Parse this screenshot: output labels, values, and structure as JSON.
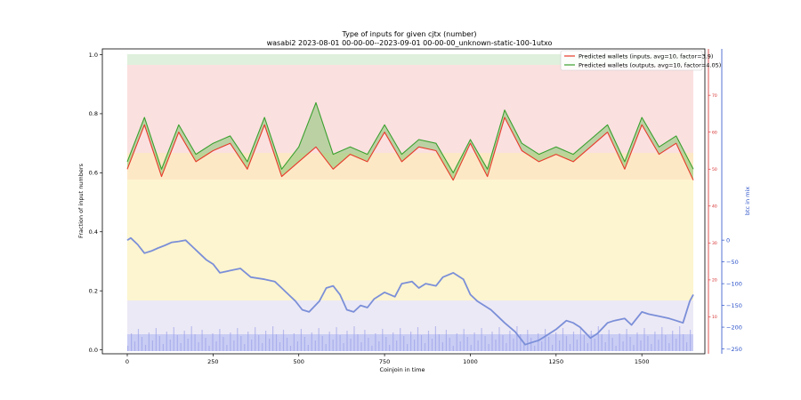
{
  "chart_data": {
    "type": "line",
    "title": "Type of inputs for given cjtx (number)",
    "subtitle": "wasabi2 2023-08-01 00-00-00--2023-09-01 00-00-00_unknown-static-100-1utxo",
    "xlabel": "Coinjoin in time",
    "ylabel": "Fraction of input numbers",
    "y2label": "btc in mix",
    "xlim": [
      -70,
      1700
    ],
    "ylim": [
      0.0,
      1.0
    ],
    "y2lim": [
      -255,
      5
    ],
    "y3lim": [
      0,
      80
    ],
    "x_ticks": [
      0,
      250,
      500,
      750,
      1000,
      1250,
      1500
    ],
    "y_ticks": [
      0.0,
      0.2,
      0.4,
      0.6,
      0.8,
      1.0
    ],
    "y2_ticks": [
      0,
      -50,
      -100,
      -150,
      -200,
      -250
    ],
    "y3_ticks": [
      10,
      20,
      30,
      40,
      50,
      60,
      70
    ],
    "n_coinjoins": 1650,
    "grid": false,
    "legend_position": "top-right",
    "series": [
      {
        "name": "Predicted wallets (inputs, avg=10, factor=3.9)",
        "color": "#e8392a",
        "axis": "y3",
        "x": [
          0,
          50,
          100,
          150,
          200,
          250,
          300,
          350,
          400,
          450,
          500,
          550,
          600,
          650,
          700,
          750,
          800,
          850,
          900,
          950,
          1000,
          1050,
          1100,
          1150,
          1200,
          1250,
          1300,
          1350,
          1400,
          1450,
          1500,
          1550,
          1600,
          1650
        ],
        "values": [
          50,
          62,
          48,
          60,
          52,
          55,
          57,
          50,
          62,
          48,
          52,
          56,
          50,
          54,
          52,
          60,
          52,
          56,
          55,
          47,
          57,
          48,
          64,
          55,
          52,
          54,
          52,
          56,
          60,
          50,
          62,
          54,
          57,
          47
        ]
      },
      {
        "name": "Predicted wallets (outputs, avg=10, factor=4.05)",
        "color": "#3aa02e",
        "axis": "y3",
        "x": [
          0,
          50,
          100,
          150,
          200,
          250,
          300,
          350,
          400,
          450,
          500,
          550,
          600,
          650,
          700,
          750,
          800,
          850,
          900,
          950,
          1000,
          1050,
          1100,
          1150,
          1200,
          1250,
          1300,
          1350,
          1400,
          1450,
          1500,
          1550,
          1600,
          1650
        ],
        "values": [
          52,
          64,
          50,
          62,
          54,
          57,
          59,
          52,
          64,
          50,
          56,
          68,
          54,
          56,
          54,
          62,
          54,
          58,
          57,
          49,
          58,
          50,
          66,
          57,
          54,
          56,
          54,
          58,
          62,
          52,
          64,
          56,
          59,
          50
        ]
      },
      {
        "name": "btc in mix",
        "color": "#7b8fd8",
        "axis": "y2",
        "x": [
          0,
          10,
          30,
          50,
          70,
          90,
          110,
          130,
          150,
          170,
          190,
          210,
          230,
          250,
          270,
          300,
          330,
          360,
          400,
          430,
          450,
          470,
          490,
          510,
          530,
          560,
          580,
          600,
          620,
          640,
          660,
          680,
          700,
          720,
          750,
          780,
          800,
          830,
          850,
          870,
          900,
          920,
          950,
          980,
          1000,
          1020,
          1040,
          1060,
          1080,
          1100,
          1130,
          1150,
          1160,
          1180,
          1200,
          1220,
          1250,
          1280,
          1300,
          1320,
          1350,
          1370,
          1400,
          1420,
          1450,
          1470,
          1500,
          1520,
          1550,
          1580,
          1600,
          1620,
          1640,
          1650
        ],
        "values": [
          0,
          5,
          -10,
          -30,
          -25,
          -18,
          -12,
          -5,
          -3,
          0,
          -15,
          -30,
          -45,
          -55,
          -75,
          -70,
          -65,
          -85,
          -90,
          -95,
          -110,
          -125,
          -140,
          -160,
          -165,
          -140,
          -110,
          -105,
          -125,
          -160,
          -165,
          -150,
          -155,
          -135,
          -120,
          -130,
          -100,
          -95,
          -110,
          -100,
          -105,
          -85,
          -75,
          -90,
          -125,
          -140,
          -150,
          -160,
          -175,
          -190,
          -210,
          -230,
          -240,
          -235,
          -230,
          -220,
          -205,
          -185,
          -190,
          -200,
          -225,
          -215,
          -190,
          -185,
          -180,
          -195,
          -165,
          -170,
          -175,
          -180,
          -185,
          -190,
          -140,
          -125
        ]
      }
    ]
  }
}
